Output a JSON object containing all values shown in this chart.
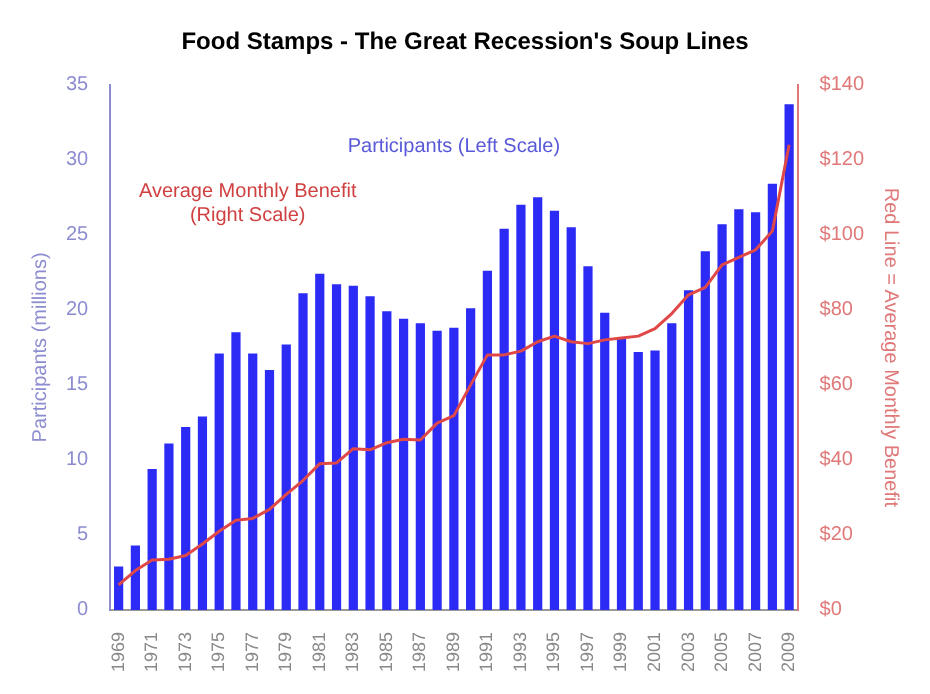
{
  "chart_data": {
    "type": "bar",
    "title": "Food Stamps - The Great Recession's Soup Lines",
    "ylabel": "Participants (millions)",
    "y2label": "Red Line = Average Monthly Benefit",
    "annotations": [
      "Participants (Left Scale)",
      "Average Monthly Benefit\n(Right Scale)"
    ],
    "categories": [
      "1969",
      null,
      "1971",
      null,
      "1973",
      null,
      "1975",
      null,
      "1977",
      null,
      "1979",
      null,
      "1981",
      null,
      "1983",
      null,
      "1985",
      null,
      "1987",
      null,
      "1989",
      null,
      "1991",
      null,
      "1993",
      null,
      "1995",
      null,
      "1997",
      null,
      "1999",
      null,
      "2001",
      null,
      "2003",
      null,
      "2005",
      null,
      "2007",
      null,
      "2009"
    ],
    "series": [
      {
        "color": "#2b2bf5",
        "values": [
          2.9,
          4.3,
          9.4,
          11.1,
          12.2,
          12.9,
          17.1,
          18.5,
          17.1,
          16.0,
          17.7,
          21.1,
          22.4,
          21.7,
          21.6,
          20.9,
          19.9,
          19.4,
          19.1,
          18.6,
          18.8,
          20.1,
          22.6,
          25.4,
          27.0,
          27.5,
          26.6,
          25.5,
          22.9,
          19.8,
          18.2,
          17.2,
          17.3,
          19.1,
          21.3,
          23.9,
          25.7,
          26.7,
          26.5,
          28.4,
          33.7
        ]
      },
      {
        "type": "line",
        "axis": "y2",
        "color": "#e04848",
        "values": [
          6.7,
          10.5,
          13.3,
          13.5,
          14.5,
          17.6,
          21,
          23.9,
          24.4,
          26.8,
          30.8,
          34.5,
          39,
          39.2,
          43,
          42.7,
          44.6,
          45.5,
          45.3,
          49.8,
          51.8,
          60,
          68,
          68,
          69,
          71.5,
          73,
          71.5,
          71,
          72,
          72.5,
          73,
          75,
          79,
          84,
          86,
          92,
          94,
          96,
          101,
          124
        ]
      }
    ],
    "ylim": [
      0,
      35
    ],
    "yticks": [
      0,
      5,
      10,
      15,
      20,
      25,
      30,
      35
    ],
    "y2lim": [
      0,
      140
    ],
    "y2ticks": [
      {
        "value": 0,
        "label": "$0"
      },
      {
        "value": 20,
        "label": "$20"
      },
      {
        "value": 40,
        "label": "$40"
      },
      {
        "value": 60,
        "label": "$60"
      },
      {
        "value": 80,
        "label": "$80"
      },
      {
        "value": 100,
        "label": "$100"
      },
      {
        "value": 120,
        "label": "$120"
      },
      {
        "value": 140,
        "label": "$140"
      }
    ],
    "grid": false,
    "legend": false,
    "marker": "none"
  }
}
